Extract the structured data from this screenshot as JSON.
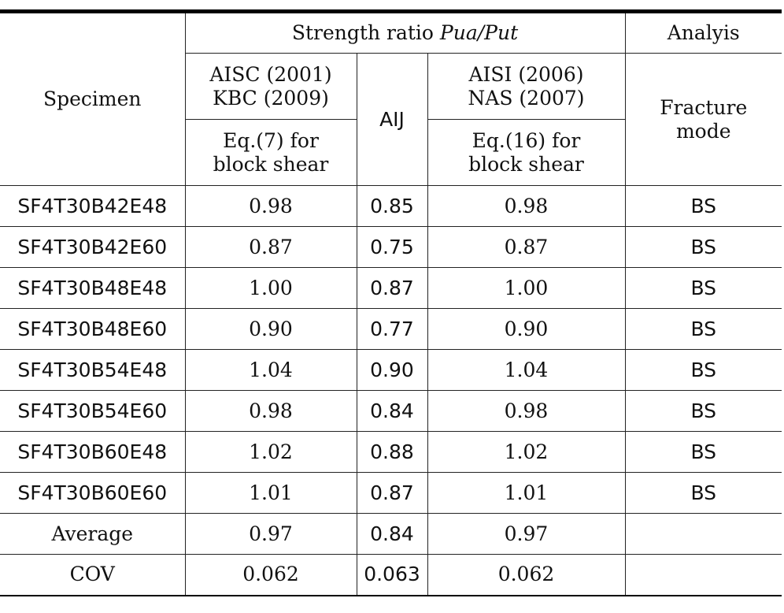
{
  "header": {
    "specimen": "Specimen",
    "strength_ratio_prefix": "Strength ratio ",
    "strength_ratio_symbol": "Pua/Put",
    "analysis": "Analyis",
    "aisc_line1": "AISC (2001)",
    "aisc_line2": "KBC (2009)",
    "aij": "AIJ",
    "aisi_line1": "AISI (2006)",
    "aisi_line2": "NAS (2007)",
    "fracture_line1": "Fracture",
    "fracture_line2": "mode",
    "eq7_line1": "Eq.(7) for",
    "eq7_line2": "block shear",
    "eq16_line1": "Eq.(16) for",
    "eq16_line2": "block shear"
  },
  "rows": [
    {
      "specimen": "SF4T30B42E48",
      "aisc": "0.98",
      "aij": "0.85",
      "aisi": "0.98",
      "mode": "BS"
    },
    {
      "specimen": "SF4T30B42E60",
      "aisc": "0.87",
      "aij": "0.75",
      "aisi": "0.87",
      "mode": "BS"
    },
    {
      "specimen": "SF4T30B48E48",
      "aisc": "1.00",
      "aij": "0.87",
      "aisi": "1.00",
      "mode": "BS"
    },
    {
      "specimen": "SF4T30B48E60",
      "aisc": "0.90",
      "aij": "0.77",
      "aisi": "0.90",
      "mode": "BS"
    },
    {
      "specimen": "SF4T30B54E48",
      "aisc": "1.04",
      "aij": "0.90",
      "aisi": "1.04",
      "mode": "BS"
    },
    {
      "specimen": "SF4T30B54E60",
      "aisc": "0.98",
      "aij": "0.84",
      "aisi": "0.98",
      "mode": "BS"
    },
    {
      "specimen": "SF4T30B60E48",
      "aisc": "1.02",
      "aij": "0.88",
      "aisi": "1.02",
      "mode": "BS"
    },
    {
      "specimen": "SF4T30B60E60",
      "aisc": "1.01",
      "aij": "0.87",
      "aisi": "1.01",
      "mode": "BS"
    }
  ],
  "summary": [
    {
      "label": "Average",
      "aisc": "0.97",
      "aij": "0.84",
      "aisi": "0.97",
      "mode": ""
    },
    {
      "label": "COV",
      "aisc": "0.062",
      "aij": "0.063",
      "aisi": "0.062",
      "mode": ""
    }
  ]
}
